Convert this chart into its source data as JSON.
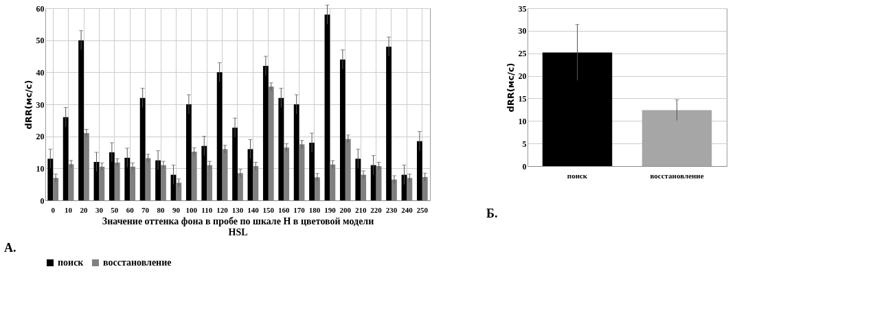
{
  "chart_data": [
    {
      "type": "bar",
      "xlabel": "Значение оттенка фона в пробе по шкале H в цветовой модели HSL",
      "ylabel": "dRR(мс/с)",
      "categories": [
        "0",
        "10",
        "20",
        "30",
        "50",
        "60",
        "70",
        "80",
        "90",
        "100",
        "110",
        "120",
        "130",
        "140",
        "150",
        "160",
        "170",
        "180",
        "190",
        "200",
        "210",
        "220",
        "230",
        "240",
        "250"
      ],
      "series": [
        {
          "name": "поиск",
          "color": "#000000",
          "values": [
            13,
            26,
            50,
            12,
            15,
            13.3,
            32,
            12.5,
            8,
            30,
            17,
            40,
            22.7,
            16,
            42,
            32,
            30,
            18,
            58,
            44,
            13,
            11,
            48,
            8,
            18.5
          ],
          "errors": [
            3,
            3,
            3,
            3,
            3,
            3,
            3,
            3,
            3,
            3,
            3,
            3,
            3,
            3,
            3,
            3,
            3,
            3,
            3,
            3,
            3,
            3,
            3,
            3,
            3
          ]
        },
        {
          "name": "восстановление",
          "color": "#808080",
          "values": [
            7,
            11.3,
            21,
            10.5,
            11.8,
            10.5,
            13.2,
            11,
            5.5,
            15.2,
            11,
            16,
            8.5,
            10.7,
            35.5,
            16.5,
            17.5,
            7.2,
            11.2,
            19.2,
            8,
            10.7,
            6.5,
            7,
            7.3
          ],
          "errors": [
            1.2,
            1.2,
            1.2,
            1.2,
            1.2,
            1.2,
            1.2,
            1.2,
            1.2,
            1.2,
            1.2,
            1.2,
            1.2,
            1.2,
            1.2,
            1.2,
            1.2,
            1.2,
            1.2,
            1.2,
            1.2,
            1.2,
            1.2,
            1.2,
            1.2
          ]
        }
      ],
      "ylim": [
        0,
        60
      ],
      "yticks": [
        0,
        10,
        20,
        30,
        40,
        50,
        60
      ],
      "grid": true,
      "legend": "bottom",
      "annotations": [
        "А."
      ]
    },
    {
      "type": "bar",
      "ylabel": "dRR(мс/с)",
      "categories": [
        "поиск",
        "восстановление"
      ],
      "values": [
        25.2,
        12.4
      ],
      "colors": [
        "#000000",
        "#a6a6a6"
      ],
      "errors": [
        6.2,
        2.3
      ],
      "ylim": [
        0,
        35
      ],
      "yticks": [
        0,
        5,
        10,
        15,
        20,
        25,
        30,
        35
      ],
      "grid": "y",
      "annotations": [
        "Б."
      ]
    }
  ]
}
